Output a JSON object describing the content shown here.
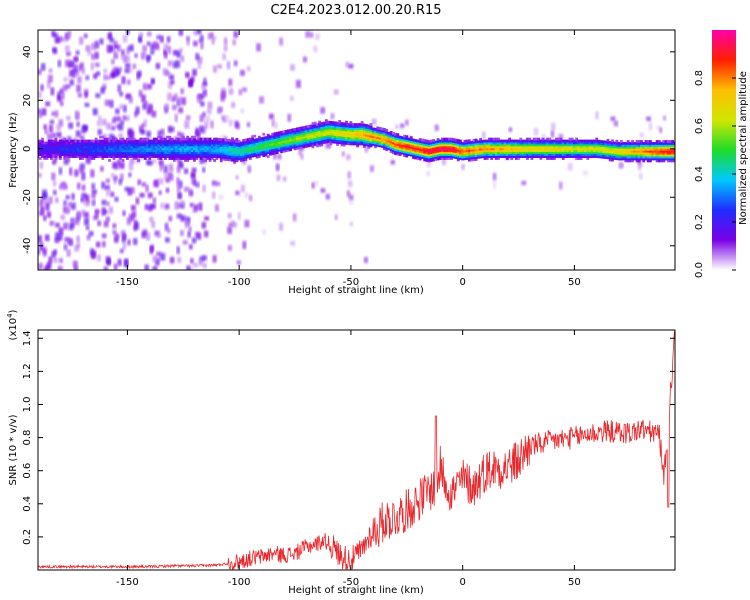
{
  "figure": {
    "title": "C2E4.2023.012.00.20.R15"
  },
  "chart_data": [
    {
      "type": "heatmap",
      "title": "C2E4.2023.012.00.20.R15",
      "xlabel": "Height of straight line (km)",
      "ylabel": "Frequency (Hz)",
      "xlim": [
        -190,
        95
      ],
      "ylim": [
        -50,
        49
      ],
      "x_ticks": [
        -150,
        -100,
        -50,
        0,
        50
      ],
      "y_ticks": [
        -40,
        -20,
        0,
        20,
        40
      ],
      "colorbar": {
        "label": "Normalized spectral amplitude",
        "range": [
          0.0,
          1.0
        ],
        "ticks": [
          "0.0",
          "0.2",
          "0.4",
          "0.6",
          "0.8"
        ],
        "colormap": [
          "#ffffff",
          "#7a00e6",
          "#1f2dff",
          "#00c8ff",
          "#1edc28",
          "#d2e600",
          "#ffbe00",
          "#ff1e00",
          "#ff00aa"
        ]
      },
      "ridge": {
        "x": [
          -190,
          -170,
          -150,
          -130,
          -110,
          -100,
          -90,
          -80,
          -70,
          -60,
          -50,
          -45,
          -40,
          -35,
          -30,
          -25,
          -20,
          -15,
          -10,
          -5,
          0,
          10,
          20,
          30,
          40,
          50,
          60,
          70,
          80,
          90,
          95
        ],
        "y": [
          0,
          0,
          0,
          0,
          0,
          -1,
          1,
          3,
          5,
          7,
          6,
          6,
          5,
          4,
          2,
          1,
          0,
          -1,
          0,
          0,
          -1,
          0,
          0,
          0,
          0,
          0,
          0,
          -1,
          -1,
          -1,
          -1
        ],
        "amplitude": [
          0.2,
          0.25,
          0.3,
          0.35,
          0.35,
          0.45,
          0.5,
          0.55,
          0.6,
          0.65,
          0.7,
          0.75,
          0.8,
          0.8,
          0.85,
          0.9,
          0.9,
          0.95,
          0.95,
          0.95,
          0.85,
          0.8,
          0.75,
          0.7,
          0.7,
          0.65,
          0.65,
          0.7,
          0.8,
          0.9,
          0.95
        ]
      }
    },
    {
      "type": "line",
      "xlabel": "Height of straight line (km)",
      "ylabel": "SNR (10 * v/v)",
      "y_multiplier": "(x10^4)",
      "xlim": [
        -190,
        95
      ],
      "ylim": [
        0,
        1.45
      ],
      "x_ticks": [
        -150,
        -100,
        -50,
        0,
        50
      ],
      "y_ticks": [
        0.2,
        0.4,
        0.6,
        0.8,
        1.0,
        1.2,
        1.4
      ],
      "series": [
        {
          "color": "#e8282d",
          "x": [
            -190,
            -180,
            -170,
            -160,
            -150,
            -140,
            -130,
            -120,
            -110,
            -100,
            -95,
            -90,
            -85,
            -80,
            -75,
            -70,
            -65,
            -62,
            -58,
            -55,
            -50,
            -45,
            -42,
            -38,
            -35,
            -30,
            -25,
            -20,
            -15,
            -12,
            -10,
            -8,
            -5,
            0,
            5,
            10,
            15,
            20,
            25,
            30,
            35,
            40,
            45,
            50,
            55,
            60,
            65,
            70,
            75,
            80,
            85,
            88,
            90,
            92,
            95
          ],
          "y": [
            0.02,
            0.02,
            0.02,
            0.02,
            0.02,
            0.02,
            0.025,
            0.025,
            0.03,
            0.05,
            0.07,
            0.08,
            0.1,
            0.09,
            0.1,
            0.14,
            0.16,
            0.18,
            0.14,
            0.09,
            0.06,
            0.12,
            0.2,
            0.25,
            0.3,
            0.32,
            0.36,
            0.42,
            0.48,
            0.5,
            0.62,
            0.55,
            0.46,
            0.55,
            0.5,
            0.6,
            0.62,
            0.62,
            0.66,
            0.75,
            0.76,
            0.78,
            0.79,
            0.8,
            0.82,
            0.83,
            0.84,
            0.83,
            0.83,
            0.85,
            0.83,
            0.82,
            0.55,
            0.88,
            1.45
          ]
        }
      ]
    }
  ]
}
